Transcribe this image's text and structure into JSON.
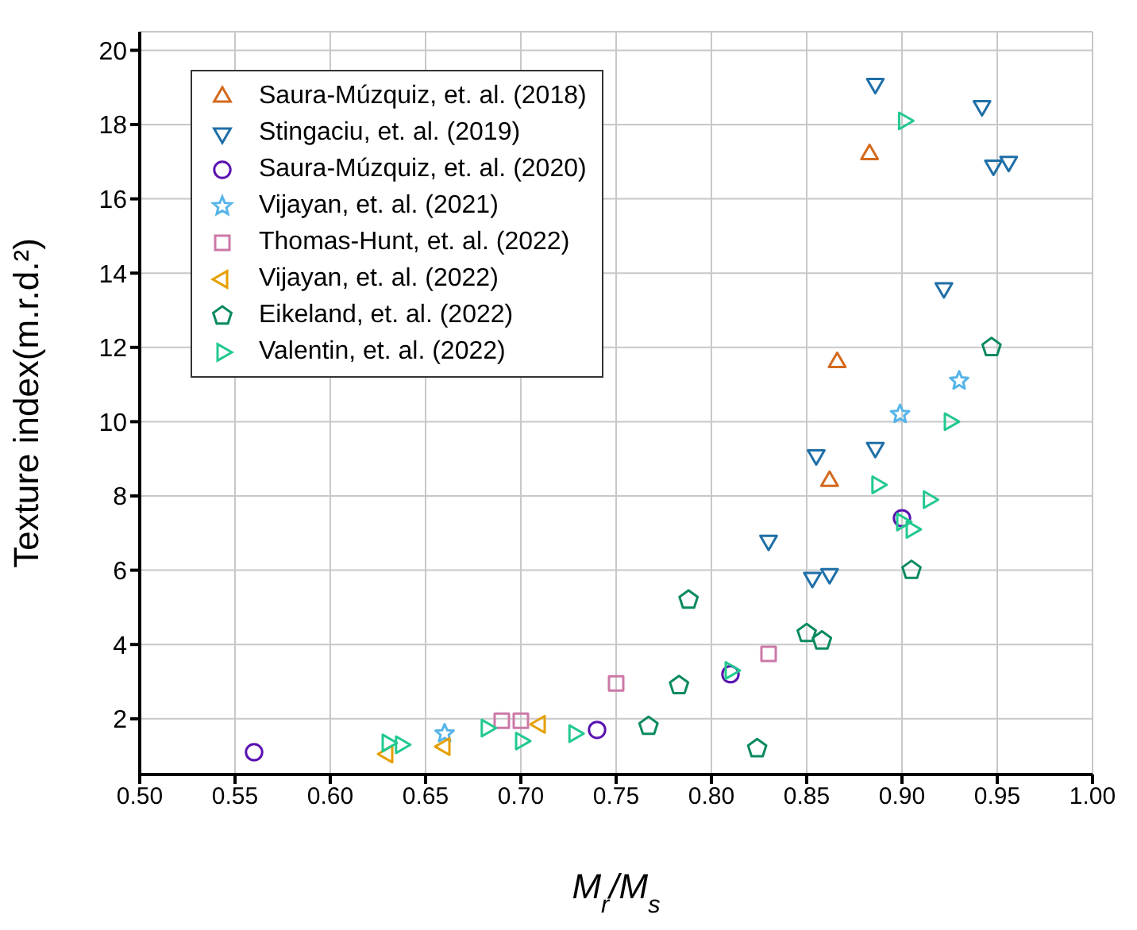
{
  "chart_data": {
    "type": "scatter",
    "xlabel": "M$_{r}$/M$_{s}$",
    "ylabel": "Texture index(m.r.d.²)",
    "xlim": [
      0.5,
      1.0
    ],
    "xticks": [
      {
        "value": 0.5,
        "label": "0.50"
      },
      {
        "value": 0.55,
        "label": "0.55"
      },
      {
        "value": 0.6,
        "label": "0.60"
      },
      {
        "value": 0.65,
        "label": "0.65"
      },
      {
        "value": 0.7,
        "label": "0.70"
      },
      {
        "value": 0.75,
        "label": "0.75"
      },
      {
        "value": 0.8,
        "label": "0.80"
      },
      {
        "value": 0.85,
        "label": "0.85"
      },
      {
        "value": 0.9,
        "label": "0.90"
      },
      {
        "value": 0.95,
        "label": "0.95"
      },
      {
        "value": 1.0,
        "label": "1.00"
      }
    ],
    "ylim": [
      0.5,
      20.5
    ],
    "yticks": [
      2,
      4,
      6,
      8,
      10,
      12,
      14,
      16,
      18,
      20
    ],
    "grid": true,
    "legend": "top left",
    "series": [
      {
        "name": "Saura-Múzquiz, et. al. (2018)",
        "color": "#d4691c",
        "marker": "triangle-up",
        "x": [
          0.883,
          0.866,
          0.862
        ],
        "values": [
          17.2,
          11.6,
          8.4
        ]
      },
      {
        "name": "Stingaciu, et. al. (2019)",
        "color": "#1f6fa8",
        "marker": "triangle-down",
        "x": [
          0.886,
          0.942,
          0.948,
          0.956,
          0.922,
          0.855,
          0.886,
          0.83,
          0.853,
          0.862
        ],
        "values": [
          19.1,
          18.5,
          16.9,
          17.0,
          13.6,
          9.1,
          9.3,
          6.8,
          5.8,
          5.9
        ]
      },
      {
        "name": "Saura-Múzquiz, et. al. (2020)",
        "color": "#5a12b0",
        "marker": "circle",
        "x": [
          0.56,
          0.74,
          0.81,
          0.9
        ],
        "values": [
          1.1,
          1.7,
          3.2,
          7.4
        ]
      },
      {
        "name": "Vijayan, et. al. (2021)",
        "color": "#56b4e9",
        "marker": "star",
        "x": [
          0.66,
          0.899,
          0.93
        ],
        "values": [
          1.6,
          10.2,
          11.1
        ]
      },
      {
        "name": "Thomas-Hunt, et. al. (2022)",
        "color": "#cc79a7",
        "marker": "square",
        "x": [
          0.69,
          0.7,
          0.75,
          0.83
        ],
        "values": [
          1.95,
          1.95,
          2.95,
          3.75
        ]
      },
      {
        "name": "Vijayan, et. al. (2022)",
        "color": "#e69f00",
        "marker": "triangle-left",
        "x": [
          0.63,
          0.66,
          0.71
        ],
        "values": [
          1.05,
          1.25,
          1.85
        ]
      },
      {
        "name": "Eikeland, et. al. (2022)",
        "color": "#0a8a5f",
        "x": [
          0.788,
          0.783,
          0.767,
          0.824,
          0.85,
          0.858,
          0.905,
          0.947
        ],
        "values": [
          5.2,
          2.9,
          1.8,
          1.2,
          4.3,
          4.1,
          6.0,
          12.0
        ]
      },
      {
        "name": "Valentin, et. al. (2022)",
        "color": "#22c98f",
        "marker": "triangle-right",
        "x": [
          0.901,
          0.925,
          0.887,
          0.914,
          0.9,
          0.905,
          0.81,
          0.682,
          0.7,
          0.728,
          0.63,
          0.637
        ],
        "values": [
          18.1,
          10.0,
          8.3,
          7.9,
          7.3,
          7.1,
          3.3,
          1.75,
          1.4,
          1.6,
          1.35,
          1.3
        ]
      }
    ]
  }
}
